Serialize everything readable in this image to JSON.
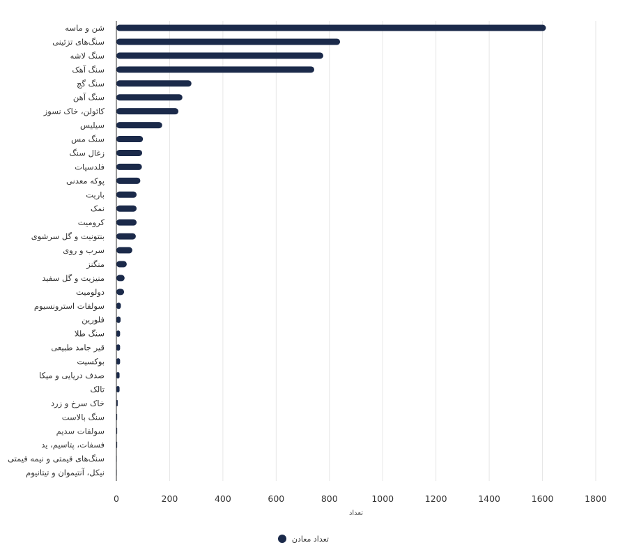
{
  "chart_data": {
    "type": "bar",
    "orientation": "horizontal",
    "categories": [
      "شن و ماسه",
      "سنگ‌های تزئینی",
      "سنگ لاشه",
      "سنگ آهک",
      "سنگ گچ",
      "سنگ آهن",
      "کائولن، خاک نسوز",
      "سیلیس",
      "سنگ مس",
      "زغال سنگ",
      "فلدسپات",
      "پوکه معدنی",
      "باریت",
      "نمک",
      "کرومیت",
      "بنتونیت و گل سرشوی",
      "سرب و روی",
      "منگنز",
      "منیزیت و گل سفید",
      "دولومیت",
      "سولفات استرونسیوم",
      "فلورین",
      "سنگ طلا",
      "قیر جامد طبیعی",
      "بوکسیت",
      "صدف دریایی و میکا",
      "تالک",
      "خاک سرخ و زرد",
      "سنگ بالاست",
      "سولفات سدیم",
      "فسفات، پتاسیم، ید",
      "سنگ‌های قیمتی و نیمه قیمتی",
      "نیکل، آنتیموان و تیتانیوم"
    ],
    "series": [
      {
        "name": "تعداد معادن",
        "color": "#1b2a4a",
        "values": [
          1613,
          840,
          777,
          743,
          282,
          248,
          233,
          172,
          100,
          97,
          96,
          90,
          76,
          76,
          76,
          73,
          60,
          39,
          31,
          29,
          17,
          16,
          14,
          14,
          14,
          12,
          12,
          5,
          3,
          3,
          3,
          1,
          1
        ]
      }
    ],
    "xlabel": "تعداد",
    "ylabel": "",
    "title": "",
    "xlim": [
      0,
      1800
    ],
    "xticks": [
      0,
      200,
      400,
      600,
      800,
      1000,
      1200,
      1400,
      1600,
      1800
    ],
    "grid": true,
    "legend_position": "bottom-center"
  }
}
